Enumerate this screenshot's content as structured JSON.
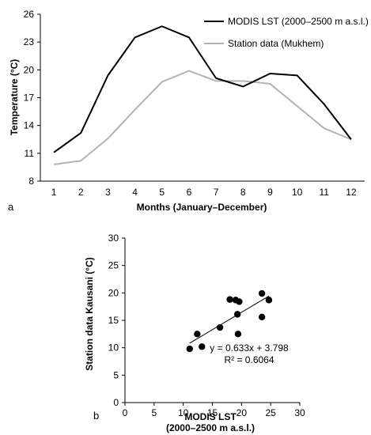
{
  "colors": {
    "modis": "#000000",
    "station": "#b3b3b3",
    "axis": "#000000",
    "point": "#000000",
    "trendline": "#000000"
  },
  "chart_data": [
    {
      "type": "line",
      "panel_label": "a",
      "title": "",
      "xlabel": "Months (January–December)",
      "ylabel": "Temperature (°C)",
      "x": [
        1,
        2,
        3,
        4,
        5,
        6,
        7,
        8,
        9,
        10,
        11,
        12
      ],
      "xticks": [
        "1",
        "2",
        "3",
        "4",
        "5",
        "6",
        "7",
        "8",
        "9",
        "10",
        "11",
        "12"
      ],
      "ylim": [
        8,
        26
      ],
      "yticks": [
        8,
        11,
        14,
        17,
        20,
        23,
        26
      ],
      "grid": false,
      "legend_position": "top-right",
      "series": [
        {
          "name": "MODIS LST (2000–2500 m a.s.l.)",
          "color": "#000000",
          "values": [
            11.1,
            13.2,
            19.4,
            23.5,
            24.7,
            23.5,
            19.1,
            18.2,
            19.6,
            19.4,
            16.3,
            12.5
          ]
        },
        {
          "name": "Station data (Mukhem)",
          "color": "#b3b3b3",
          "values": [
            9.8,
            10.2,
            12.6,
            15.7,
            18.7,
            19.9,
            18.8,
            18.8,
            18.5,
            16.1,
            13.7,
            12.5
          ]
        }
      ]
    },
    {
      "type": "scatter",
      "panel_label": "b",
      "title": "",
      "xlabel_line1": "MODIS LST",
      "xlabel_line2": "(2000–2500 m a.s.l.)",
      "ylabel": "Station data Kausani (°C)",
      "xlim": [
        0,
        30
      ],
      "ylim": [
        0,
        30
      ],
      "xticks": [
        0,
        5,
        10,
        15,
        20,
        25,
        30
      ],
      "yticks": [
        0,
        5,
        10,
        15,
        20,
        25,
        30
      ],
      "grid": false,
      "points": [
        {
          "x": 11.1,
          "y": 9.8
        },
        {
          "x": 12.4,
          "y": 12.5
        },
        {
          "x": 13.2,
          "y": 10.2
        },
        {
          "x": 16.3,
          "y": 13.7
        },
        {
          "x": 18.0,
          "y": 18.8
        },
        {
          "x": 19.0,
          "y": 18.7
        },
        {
          "x": 19.3,
          "y": 16.1
        },
        {
          "x": 19.4,
          "y": 12.5
        },
        {
          "x": 19.6,
          "y": 18.4
        },
        {
          "x": 23.5,
          "y": 19.9
        },
        {
          "x": 23.5,
          "y": 15.6
        },
        {
          "x": 24.7,
          "y": 18.7
        }
      ],
      "trendline": {
        "slope": 0.633,
        "intercept": 3.798,
        "x_range": [
          11.1,
          24.7
        ]
      },
      "equation": "y = 0.633x + 3.798",
      "r_squared": "R² = 0.6064"
    }
  ]
}
